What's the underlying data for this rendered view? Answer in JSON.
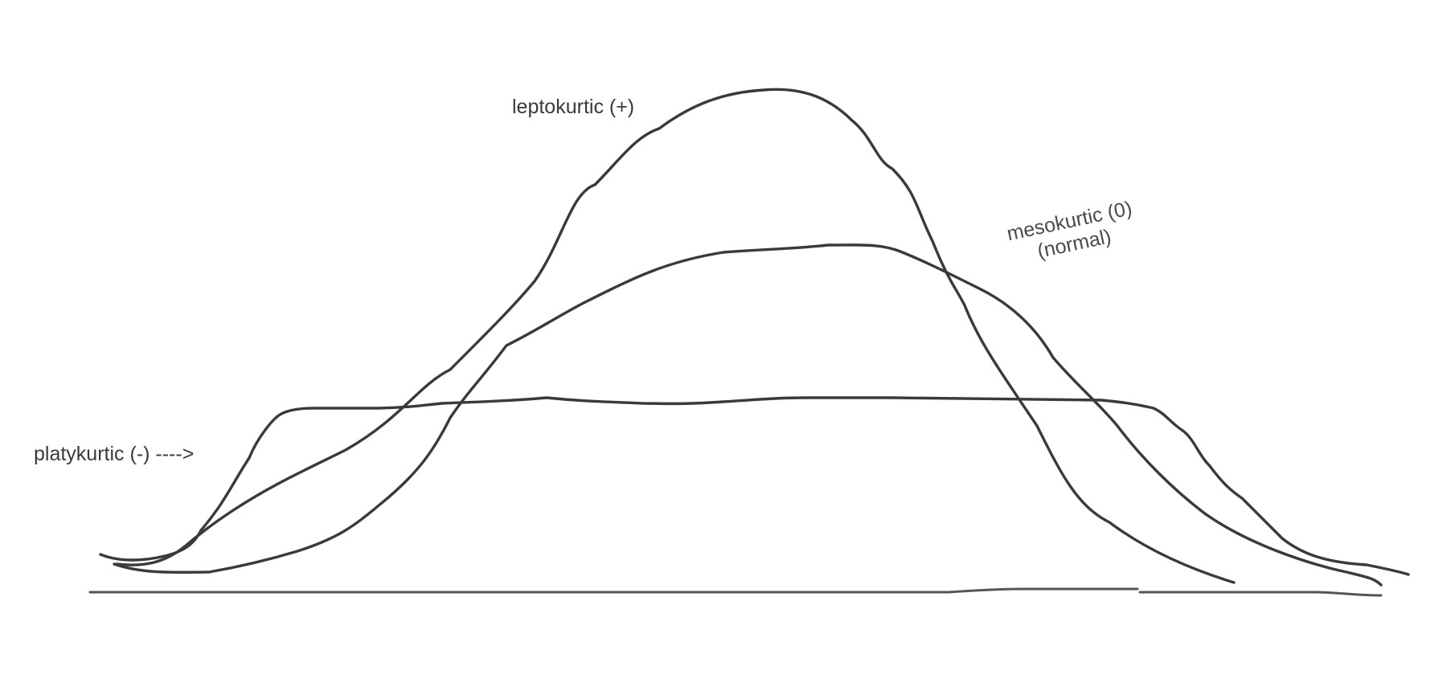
{
  "labels": {
    "leptokurtic": "leptokurtic (+)",
    "mesokurtic_line1": "mesokurtic (0)",
    "mesokurtic_line2": "(normal)",
    "platykurtic": "platykurtic (-) ---->"
  },
  "colors": {
    "stroke": "#3a3a3a",
    "background": "#ffffff"
  }
}
